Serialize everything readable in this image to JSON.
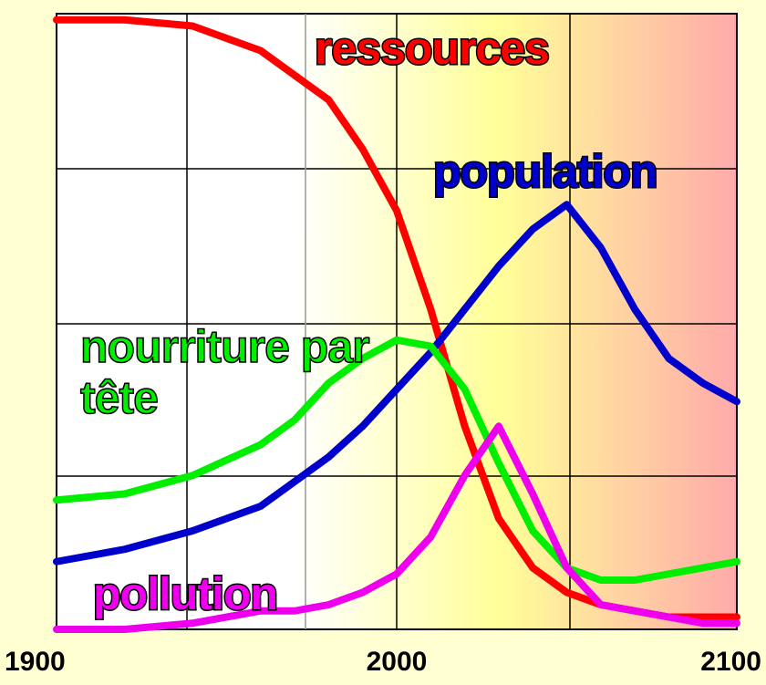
{
  "chart_data": {
    "type": "line",
    "x": [
      1900,
      1920,
      1940,
      1960,
      1970,
      1980,
      1990,
      2000,
      2010,
      2020,
      2030,
      2040,
      2050,
      2060,
      2070,
      2080,
      2090,
      2100
    ],
    "series": [
      {
        "name": "ressources",
        "color": "#ff0000",
        "values": [
          99,
          99,
          98,
          94,
          90,
          86,
          78,
          68,
          52,
          33,
          18,
          10,
          6,
          4,
          3,
          2,
          2,
          2
        ]
      },
      {
        "name": "population",
        "color": "#0000cc",
        "values": [
          11,
          13,
          16,
          20,
          24,
          28,
          33,
          39,
          45,
          52,
          59,
          65,
          69,
          62,
          52,
          44,
          40,
          37
        ]
      },
      {
        "name": "nourriture par tête",
        "color": "#00ee00",
        "values": [
          21,
          22,
          25,
          30,
          34,
          40,
          44,
          47,
          46,
          39,
          27,
          16,
          10,
          8,
          8,
          9,
          10,
          11
        ]
      },
      {
        "name": "pollution",
        "color": "#ee00ee",
        "values": [
          0,
          0,
          1,
          3,
          3,
          4,
          6,
          9,
          15,
          25,
          33,
          22,
          10,
          4,
          3,
          2,
          1,
          1
        ]
      }
    ],
    "xlim": [
      1900,
      2100
    ],
    "xticks": [
      1900,
      2000,
      2100
    ],
    "ylim": [
      0,
      100
    ],
    "grid": true
  }
}
